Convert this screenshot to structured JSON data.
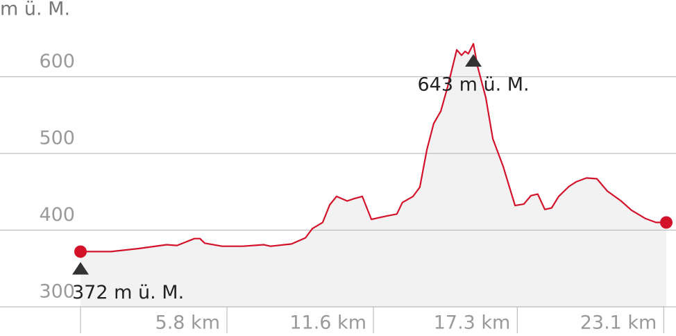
{
  "chart_data": {
    "type": "area",
    "y_label": "m ü. M.",
    "x": [
      0,
      1.21,
      2.31,
      3.41,
      3.82,
      4.51,
      4.73,
      4.92,
      5.61,
      6.43,
      7.26,
      7.53,
      8.36,
      8.91,
      9.18,
      9.59,
      9.87,
      10.14,
      10.56,
      10.83,
      11.16,
      11.52,
      12.07,
      12.53,
      12.75,
      13.17,
      13.44,
      13.72,
      13.99,
      14.27,
      14.54,
      14.9,
      15.09,
      15.23,
      15.36,
      15.56,
      15.72,
      16.05,
      16.33,
      16.74,
      17.21,
      17.56,
      17.84,
      18.11,
      18.39,
      18.66,
      18.94,
      19.35,
      19.63,
      20.04,
      20.45,
      20.86,
      21.41,
      21.82,
      22.38,
      22.79,
      23.2
    ],
    "values": [
      372,
      372,
      376,
      381,
      380,
      389,
      389,
      383,
      379,
      379,
      381,
      379,
      382,
      390,
      402,
      410,
      433,
      444,
      438,
      441,
      444,
      414,
      418,
      421,
      436,
      444,
      456,
      505,
      539,
      555,
      587,
      635,
      628,
      633,
      630,
      643,
      614,
      573,
      519,
      483,
      432,
      434,
      445,
      447,
      427,
      429,
      444,
      457,
      463,
      468,
      467,
      451,
      438,
      426,
      415,
      410,
      410
    ],
    "color": "#d3122a",
    "xlim": [
      0,
      23.2
    ],
    "ylim": [
      300,
      700
    ],
    "yticks": [
      300,
      400,
      500,
      600
    ],
    "xticks": [
      {
        "value": 5.8,
        "label": "5.8 km"
      },
      {
        "value": 11.6,
        "label": "11.6 km"
      },
      {
        "value": 17.3,
        "label": "17.3 km"
      },
      {
        "value": 23.1,
        "label": "23.1 km"
      }
    ],
    "grid": true,
    "annotations": [
      {
        "label": "643 m ü. M.",
        "x": 15.56,
        "y": 643
      },
      {
        "label": "372 m ü. M.",
        "x": 0,
        "y": 372
      }
    ]
  }
}
